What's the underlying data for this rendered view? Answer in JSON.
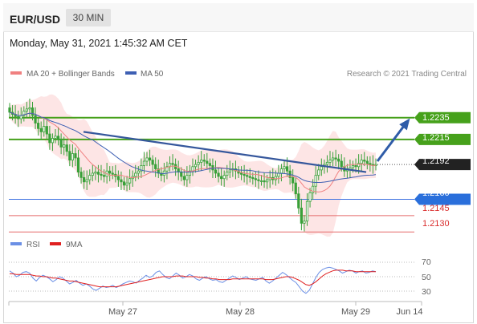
{
  "header": {
    "symbol": "EUR/USD",
    "interval": "30 MIN"
  },
  "timestamp": "Monday, May 31, 2021 1:45:32 AM CET",
  "legend": {
    "ma20_label": "MA 20 + Bollinger Bands",
    "ma50_label": "MA 50",
    "credit": "Research © 2021 Trading Central"
  },
  "rsi_legend": {
    "rsi_label": "RSI",
    "ma_label": "9MA"
  },
  "colors": {
    "candle": "#39a139",
    "bollinger_fill": "#fde0e0",
    "ma20": "#f08080",
    "ma50": "#3d5fb3",
    "trendline": "#35579c",
    "resistance": "#46a11b",
    "pivot": "#3a6fe0",
    "support": "#e56b6b",
    "current_tag": "#222222",
    "rsi": "#6b8fe5",
    "rsi_ma": "#e02020"
  },
  "chart_data": [
    {
      "type": "candlestick",
      "title": "EUR/USD",
      "interval": "30 MIN",
      "ylim": [
        1.2125,
        1.2265
      ],
      "x_ticks": [
        "May 27",
        "May 28",
        "May 29",
        "Jun 14"
      ],
      "last_price": 1.2192,
      "closes": [
        1.224,
        1.2238,
        1.2236,
        1.2234,
        1.2237,
        1.2241,
        1.2243,
        1.2244,
        1.2237,
        1.223,
        1.2225,
        1.2222,
        1.2227,
        1.222,
        1.2212,
        1.2216,
        1.2218,
        1.2215,
        1.2208,
        1.221,
        1.2204,
        1.2196,
        1.2202,
        1.2198,
        1.2185,
        1.218,
        1.2176,
        1.2178,
        1.2182,
        1.2184,
        1.2185,
        1.2183,
        1.2182,
        1.2181,
        1.2186,
        1.2184,
        1.2183,
        1.2181,
        1.2178,
        1.2176,
        1.2173,
        1.2175,
        1.2179,
        1.2181,
        1.2184,
        1.2186,
        1.2191,
        1.2195,
        1.2198,
        1.2196,
        1.2192,
        1.2188,
        1.2184,
        1.2182,
        1.2186,
        1.219,
        1.2193,
        1.2192,
        1.2188,
        1.2185,
        1.2181,
        1.2178,
        1.2182,
        1.2186,
        1.219,
        1.2192,
        1.2194,
        1.2196,
        1.2195,
        1.2193,
        1.2191,
        1.2187,
        1.2184,
        1.2181,
        1.2179,
        1.2182,
        1.2185,
        1.2187,
        1.2188,
        1.2186,
        1.2184,
        1.2183,
        1.2182,
        1.2181,
        1.218,
        1.2179,
        1.2178,
        1.2177,
        1.2177,
        1.2176,
        1.2178,
        1.218,
        1.2178,
        1.2181,
        1.2184,
        1.2188,
        1.219,
        1.2186,
        1.218,
        1.2175,
        1.2165,
        1.2152,
        1.2138,
        1.214,
        1.2158,
        1.2166,
        1.2172,
        1.2182,
        1.2187,
        1.219,
        1.2192,
        1.2194,
        1.2196,
        1.2198,
        1.2197,
        1.2195,
        1.219,
        1.2186,
        1.2187,
        1.2189,
        1.2191,
        1.219,
        1.2193,
        1.2196,
        1.2195,
        1.2193,
        1.2192,
        1.2191,
        1.2192
      ],
      "series": [
        {
          "name": "MA 20 + Bollinger Bands",
          "kind": "line"
        },
        {
          "name": "MA 50",
          "kind": "line"
        }
      ],
      "levels": [
        {
          "value": 1.2235,
          "label": "1.2235",
          "kind": "resistance"
        },
        {
          "value": 1.2215,
          "label": "1.2215",
          "kind": "resistance"
        },
        {
          "value": 1.2192,
          "label": "1.2192",
          "kind": "current"
        },
        {
          "value": 1.216,
          "label": "1.2160",
          "kind": "pivot"
        },
        {
          "value": 1.2145,
          "label": "1.2145",
          "kind": "support"
        },
        {
          "value": 1.213,
          "label": "1.2130",
          "kind": "support"
        }
      ],
      "trendline": {
        "from": [
          "May 26",
          1.2222
        ],
        "to": [
          "May 29",
          1.2185
        ]
      },
      "forecast_arrow": {
        "from": 1.2195,
        "to": 1.2232,
        "direction": "up"
      }
    },
    {
      "type": "line",
      "title": "RSI",
      "ylim": [
        20,
        80
      ],
      "y_ticks": [
        70,
        50,
        30
      ],
      "series": [
        {
          "name": "RSI",
          "values": [
            58,
            55,
            50,
            52,
            56,
            57,
            55,
            48,
            44,
            49,
            52,
            50,
            47,
            43,
            46,
            50,
            48,
            44,
            40,
            42,
            45,
            41,
            38,
            40,
            37,
            33,
            31,
            34,
            37,
            35,
            36,
            38,
            35,
            37,
            40,
            42,
            44,
            43,
            41,
            45,
            48,
            52,
            49,
            51,
            56,
            58,
            53,
            49,
            47,
            51,
            55,
            52,
            48,
            50,
            53,
            51,
            47,
            45,
            48,
            50,
            47,
            45,
            46,
            43,
            42,
            45,
            48,
            51,
            49,
            46,
            48,
            50,
            47,
            46,
            45,
            47,
            49,
            44,
            41,
            44,
            48,
            52,
            56,
            53,
            49,
            45,
            42,
            36,
            30,
            27,
            31,
            40,
            49,
            56,
            60,
            62,
            63,
            62,
            60,
            58,
            55,
            57,
            59,
            58,
            55,
            57,
            58,
            55,
            56,
            58,
            57
          ]
        },
        {
          "name": "9MA",
          "values": [
            54,
            54,
            53,
            53,
            53,
            53,
            53,
            52,
            51,
            51,
            50,
            50,
            49,
            48,
            48,
            47,
            46,
            45,
            44,
            44,
            43,
            42,
            41,
            40,
            39,
            38,
            37,
            36,
            36,
            36,
            36,
            36,
            36,
            37,
            38,
            39,
            40,
            41,
            42,
            43,
            44,
            45,
            46,
            47,
            48,
            49,
            50,
            50,
            50,
            50,
            51,
            51,
            51,
            50,
            50,
            50,
            50,
            49,
            49,
            48,
            48,
            47,
            47,
            46,
            46,
            46,
            46,
            47,
            47,
            47,
            47,
            47,
            47,
            47,
            47,
            47,
            47,
            46,
            46,
            46,
            47,
            48,
            49,
            50,
            50,
            49,
            47,
            45,
            42,
            39,
            38,
            40,
            43,
            47,
            51,
            54,
            56,
            58,
            59,
            59,
            59,
            58,
            58,
            58,
            57,
            57,
            57,
            57,
            57,
            57,
            57
          ]
        }
      ]
    }
  ],
  "level_tags": {
    "r2": "1.2235",
    "r1": "1.2215",
    "current": "1.2192",
    "pivot": "1.2160",
    "s1": "1.2145",
    "s2": "1.2130"
  },
  "axis": {
    "x_ticks": [
      "May 27",
      "May 28",
      "May 29",
      "Jun 14"
    ],
    "rsi_ticks": [
      "70",
      "50",
      "30"
    ]
  }
}
